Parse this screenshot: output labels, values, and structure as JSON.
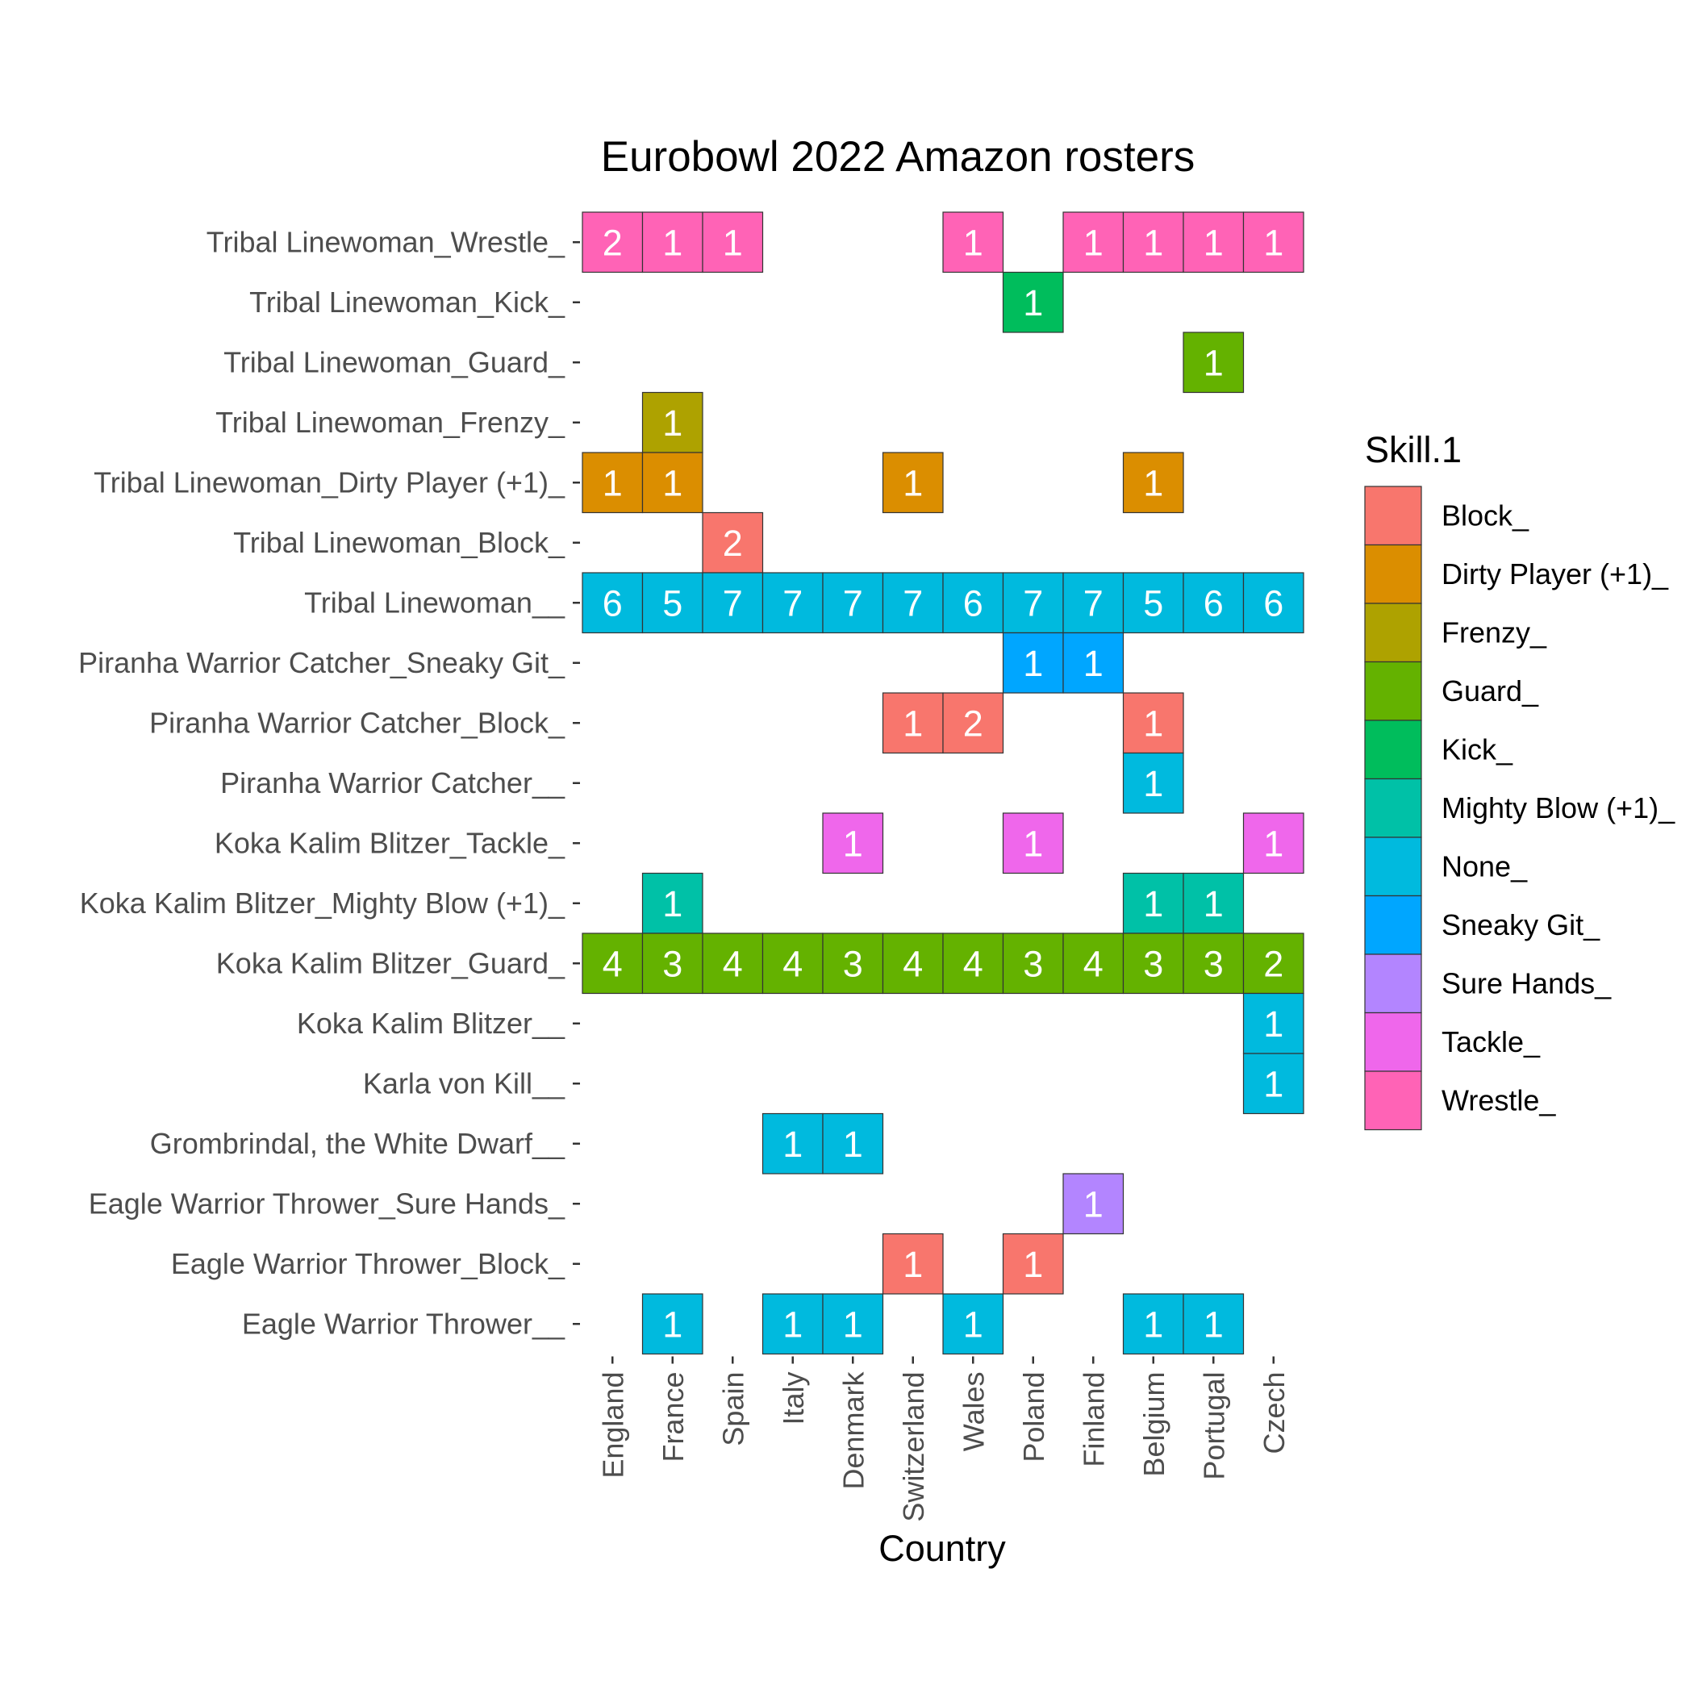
{
  "chart_data": {
    "type": "heatmap",
    "title": "Eurobowl 2022 Amazon rosters",
    "xlabel": "Country",
    "ylabel": "",
    "x_categories": [
      "England",
      "France",
      "Spain",
      "Italy",
      "Denmark",
      "Switzerland",
      "Wales",
      "Poland",
      "Finland",
      "Belgium",
      "Portugal",
      "Czech"
    ],
    "y_categories_top_to_bottom": [
      "Tribal Linewoman_Wrestle_",
      "Tribal Linewoman_Kick_",
      "Tribal Linewoman_Guard_",
      "Tribal Linewoman_Frenzy_",
      "Tribal Linewoman_Dirty Player (+1)_",
      "Tribal Linewoman_Block_",
      "Tribal Linewoman__",
      "Piranha Warrior Catcher_Sneaky Git_",
      "Piranha Warrior Catcher_Block_",
      "Piranha Warrior Catcher__",
      "Koka Kalim Blitzer_Tackle_",
      "Koka Kalim Blitzer_Mighty Blow (+1)_",
      "Koka Kalim Blitzer_Guard_",
      "Koka Kalim Blitzer__",
      "Karla von Kill__",
      "Grombrindal, the White Dwarf__",
      "Eagle Warrior Thrower_Sure Hands_",
      "Eagle Warrior Thrower_Block_",
      "Eagle Warrior Thrower__"
    ],
    "legend": {
      "title": "Skill.1",
      "position": "right",
      "items": [
        {
          "label": "Block_",
          "color": "#F8766D"
        },
        {
          "label": "Dirty Player (+1)_",
          "color": "#DB8E00"
        },
        {
          "label": "Frenzy_",
          "color": "#AEA200"
        },
        {
          "label": "Guard_",
          "color": "#64B200"
        },
        {
          "label": "Kick_",
          "color": "#00BD5C"
        },
        {
          "label": "Mighty Blow (+1)_",
          "color": "#00C1A7"
        },
        {
          "label": "None_",
          "color": "#00BADE"
        },
        {
          "label": "Sneaky Git_",
          "color": "#00A6FF"
        },
        {
          "label": "Sure Hands_",
          "color": "#B385FF"
        },
        {
          "label": "Tackle_",
          "color": "#EF67EB"
        },
        {
          "label": "Wrestle_",
          "color": "#FF63B6"
        }
      ]
    },
    "cells": [
      {
        "row": "Tribal Linewoman_Wrestle_",
        "country": "England",
        "value": 2,
        "skill": "Wrestle_"
      },
      {
        "row": "Tribal Linewoman_Wrestle_",
        "country": "France",
        "value": 1,
        "skill": "Wrestle_"
      },
      {
        "row": "Tribal Linewoman_Wrestle_",
        "country": "Spain",
        "value": 1,
        "skill": "Wrestle_"
      },
      {
        "row": "Tribal Linewoman_Wrestle_",
        "country": "Wales",
        "value": 1,
        "skill": "Wrestle_"
      },
      {
        "row": "Tribal Linewoman_Wrestle_",
        "country": "Finland",
        "value": 1,
        "skill": "Wrestle_"
      },
      {
        "row": "Tribal Linewoman_Wrestle_",
        "country": "Belgium",
        "value": 1,
        "skill": "Wrestle_"
      },
      {
        "row": "Tribal Linewoman_Wrestle_",
        "country": "Portugal",
        "value": 1,
        "skill": "Wrestle_"
      },
      {
        "row": "Tribal Linewoman_Wrestle_",
        "country": "Czech",
        "value": 1,
        "skill": "Wrestle_"
      },
      {
        "row": "Tribal Linewoman_Kick_",
        "country": "Poland",
        "value": 1,
        "skill": "Kick_"
      },
      {
        "row": "Tribal Linewoman_Guard_",
        "country": "Portugal",
        "value": 1,
        "skill": "Guard_"
      },
      {
        "row": "Tribal Linewoman_Frenzy_",
        "country": "France",
        "value": 1,
        "skill": "Frenzy_"
      },
      {
        "row": "Tribal Linewoman_Dirty Player (+1)_",
        "country": "England",
        "value": 1,
        "skill": "Dirty Player (+1)_"
      },
      {
        "row": "Tribal Linewoman_Dirty Player (+1)_",
        "country": "France",
        "value": 1,
        "skill": "Dirty Player (+1)_"
      },
      {
        "row": "Tribal Linewoman_Dirty Player (+1)_",
        "country": "Switzerland",
        "value": 1,
        "skill": "Dirty Player (+1)_"
      },
      {
        "row": "Tribal Linewoman_Dirty Player (+1)_",
        "country": "Belgium",
        "value": 1,
        "skill": "Dirty Player (+1)_"
      },
      {
        "row": "Tribal Linewoman_Block_",
        "country": "Spain",
        "value": 2,
        "skill": "Block_"
      },
      {
        "row": "Tribal Linewoman__",
        "country": "England",
        "value": 6,
        "skill": "None_"
      },
      {
        "row": "Tribal Linewoman__",
        "country": "France",
        "value": 5,
        "skill": "None_"
      },
      {
        "row": "Tribal Linewoman__",
        "country": "Spain",
        "value": 7,
        "skill": "None_"
      },
      {
        "row": "Tribal Linewoman__",
        "country": "Italy",
        "value": 7,
        "skill": "None_"
      },
      {
        "row": "Tribal Linewoman__",
        "country": "Denmark",
        "value": 7,
        "skill": "None_"
      },
      {
        "row": "Tribal Linewoman__",
        "country": "Switzerland",
        "value": 7,
        "skill": "None_"
      },
      {
        "row": "Tribal Linewoman__",
        "country": "Wales",
        "value": 6,
        "skill": "None_"
      },
      {
        "row": "Tribal Linewoman__",
        "country": "Poland",
        "value": 7,
        "skill": "None_"
      },
      {
        "row": "Tribal Linewoman__",
        "country": "Finland",
        "value": 7,
        "skill": "None_"
      },
      {
        "row": "Tribal Linewoman__",
        "country": "Belgium",
        "value": 5,
        "skill": "None_"
      },
      {
        "row": "Tribal Linewoman__",
        "country": "Portugal",
        "value": 6,
        "skill": "None_"
      },
      {
        "row": "Tribal Linewoman__",
        "country": "Czech",
        "value": 6,
        "skill": "None_"
      },
      {
        "row": "Piranha Warrior Catcher_Sneaky Git_",
        "country": "Poland",
        "value": 1,
        "skill": "Sneaky Git_"
      },
      {
        "row": "Piranha Warrior Catcher_Sneaky Git_",
        "country": "Finland",
        "value": 1,
        "skill": "Sneaky Git_"
      },
      {
        "row": "Piranha Warrior Catcher_Block_",
        "country": "Switzerland",
        "value": 1,
        "skill": "Block_"
      },
      {
        "row": "Piranha Warrior Catcher_Block_",
        "country": "Wales",
        "value": 2,
        "skill": "Block_"
      },
      {
        "row": "Piranha Warrior Catcher_Block_",
        "country": "Belgium",
        "value": 1,
        "skill": "Block_"
      },
      {
        "row": "Piranha Warrior Catcher__",
        "country": "Belgium",
        "value": 1,
        "skill": "None_"
      },
      {
        "row": "Koka Kalim Blitzer_Tackle_",
        "country": "Denmark",
        "value": 1,
        "skill": "Tackle_"
      },
      {
        "row": "Koka Kalim Blitzer_Tackle_",
        "country": "Poland",
        "value": 1,
        "skill": "Tackle_"
      },
      {
        "row": "Koka Kalim Blitzer_Tackle_",
        "country": "Czech",
        "value": 1,
        "skill": "Tackle_"
      },
      {
        "row": "Koka Kalim Blitzer_Mighty Blow (+1)_",
        "country": "France",
        "value": 1,
        "skill": "Mighty Blow (+1)_"
      },
      {
        "row": "Koka Kalim Blitzer_Mighty Blow (+1)_",
        "country": "Belgium",
        "value": 1,
        "skill": "Mighty Blow (+1)_"
      },
      {
        "row": "Koka Kalim Blitzer_Mighty Blow (+1)_",
        "country": "Portugal",
        "value": 1,
        "skill": "Mighty Blow (+1)_"
      },
      {
        "row": "Koka Kalim Blitzer_Guard_",
        "country": "England",
        "value": 4,
        "skill": "Guard_"
      },
      {
        "row": "Koka Kalim Blitzer_Guard_",
        "country": "France",
        "value": 3,
        "skill": "Guard_"
      },
      {
        "row": "Koka Kalim Blitzer_Guard_",
        "country": "Spain",
        "value": 4,
        "skill": "Guard_"
      },
      {
        "row": "Koka Kalim Blitzer_Guard_",
        "country": "Italy",
        "value": 4,
        "skill": "Guard_"
      },
      {
        "row": "Koka Kalim Blitzer_Guard_",
        "country": "Denmark",
        "value": 3,
        "skill": "Guard_"
      },
      {
        "row": "Koka Kalim Blitzer_Guard_",
        "country": "Switzerland",
        "value": 4,
        "skill": "Guard_"
      },
      {
        "row": "Koka Kalim Blitzer_Guard_",
        "country": "Wales",
        "value": 4,
        "skill": "Guard_"
      },
      {
        "row": "Koka Kalim Blitzer_Guard_",
        "country": "Poland",
        "value": 3,
        "skill": "Guard_"
      },
      {
        "row": "Koka Kalim Blitzer_Guard_",
        "country": "Finland",
        "value": 4,
        "skill": "Guard_"
      },
      {
        "row": "Koka Kalim Blitzer_Guard_",
        "country": "Belgium",
        "value": 3,
        "skill": "Guard_"
      },
      {
        "row": "Koka Kalim Blitzer_Guard_",
        "country": "Portugal",
        "value": 3,
        "skill": "Guard_"
      },
      {
        "row": "Koka Kalim Blitzer_Guard_",
        "country": "Czech",
        "value": 2,
        "skill": "Guard_"
      },
      {
        "row": "Koka Kalim Blitzer__",
        "country": "Czech",
        "value": 1,
        "skill": "None_"
      },
      {
        "row": "Karla von Kill__",
        "country": "Czech",
        "value": 1,
        "skill": "None_"
      },
      {
        "row": "Grombrindal, the White Dwarf__",
        "country": "Italy",
        "value": 1,
        "skill": "None_"
      },
      {
        "row": "Grombrindal, the White Dwarf__",
        "country": "Denmark",
        "value": 1,
        "skill": "None_"
      },
      {
        "row": "Eagle Warrior Thrower_Sure Hands_",
        "country": "Finland",
        "value": 1,
        "skill": "Sure Hands_"
      },
      {
        "row": "Eagle Warrior Thrower_Block_",
        "country": "Switzerland",
        "value": 1,
        "skill": "Block_"
      },
      {
        "row": "Eagle Warrior Thrower_Block_",
        "country": "Poland",
        "value": 1,
        "skill": "Block_"
      },
      {
        "row": "Eagle Warrior Thrower__",
        "country": "France",
        "value": 1,
        "skill": "None_"
      },
      {
        "row": "Eagle Warrior Thrower__",
        "country": "Italy",
        "value": 1,
        "skill": "None_"
      },
      {
        "row": "Eagle Warrior Thrower__",
        "country": "Denmark",
        "value": 1,
        "skill": "None_"
      },
      {
        "row": "Eagle Warrior Thrower__",
        "country": "Wales",
        "value": 1,
        "skill": "None_"
      },
      {
        "row": "Eagle Warrior Thrower__",
        "country": "Belgium",
        "value": 1,
        "skill": "None_"
      },
      {
        "row": "Eagle Warrior Thrower__",
        "country": "Portugal",
        "value": 1,
        "skill": "None_"
      }
    ]
  }
}
